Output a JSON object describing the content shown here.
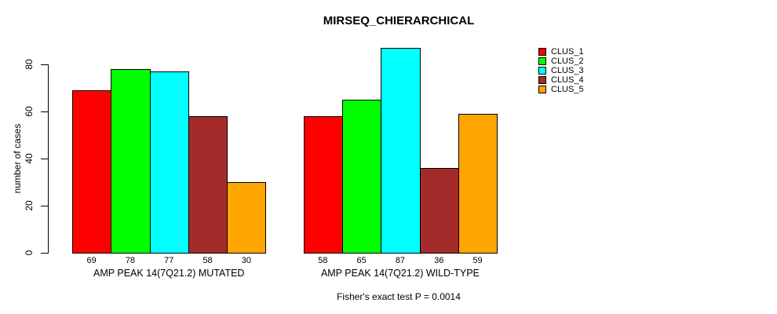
{
  "chart_data": {
    "type": "bar",
    "title": "MIRSEQ_CHIERARCHICAL",
    "xlabel": "",
    "ylabel": "number of cases",
    "categories": [
      "AMP PEAK 14(7Q21.2) MUTATED",
      "AMP PEAK 14(7Q21.2) WILD-TYPE"
    ],
    "series": [
      {
        "name": "CLUS_1",
        "color": "#FF0000",
        "values": [
          69,
          58
        ]
      },
      {
        "name": "CLUS_2",
        "color": "#00FF00",
        "values": [
          78,
          65
        ]
      },
      {
        "name": "CLUS_3",
        "color": "#00FFFF",
        "values": [
          77,
          87
        ]
      },
      {
        "name": "CLUS_4",
        "color": "#A52A2A",
        "values": [
          58,
          36
        ]
      },
      {
        "name": "CLUS_5",
        "color": "#FFA500",
        "values": [
          30,
          59
        ]
      }
    ],
    "yticks": [
      0,
      20,
      40,
      60,
      80
    ],
    "ylim": [
      0,
      87
    ],
    "grid": false,
    "legend_position": "top-right",
    "bar_value_labels": true,
    "annotation": "Fisher's exact test P = 0.0014"
  }
}
